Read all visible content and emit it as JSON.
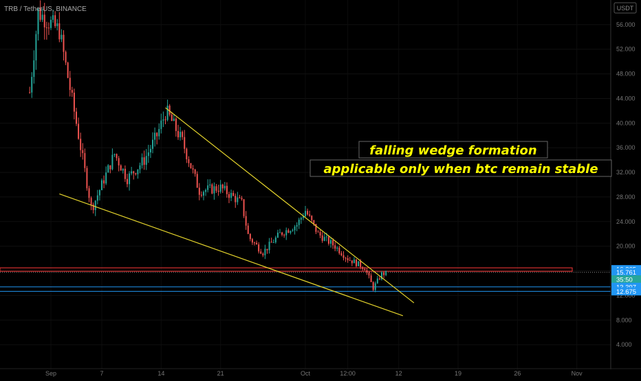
{
  "header": {
    "symbol_line": "TRB / TetherUS, BINANCE",
    "usdt_badge": "USDT"
  },
  "annotations": {
    "line1": "falling wedge formation",
    "line2": "applicable only when btc remain stable"
  },
  "price_labels": [
    {
      "text": "16.265",
      "price": 16.265,
      "color": "#2196f3"
    },
    {
      "text": "15.761",
      "price": 15.761,
      "color": "#2196f3"
    },
    {
      "text": "35:50",
      "price": 14.6,
      "color": "#26a69a"
    },
    {
      "text": "13.397",
      "price": 13.397,
      "color": "#2196f3"
    },
    {
      "text": "12.675",
      "price": 12.675,
      "color": "#2196f3"
    }
  ],
  "colors": {
    "up": "#26a69a",
    "down": "#ef5350",
    "wedge": "#e6d52c",
    "resistance": "#d32f2f",
    "support": "#2196f3"
  },
  "chart_data": {
    "type": "candlestick",
    "title": "TRB / TetherUS, BINANCE",
    "y_ticks": [
      4,
      8,
      12,
      16,
      20,
      24,
      28,
      32,
      36,
      40,
      44,
      48,
      52,
      56
    ],
    "y_tick_labels": [
      "4.000",
      "8.000",
      "12.000",
      "16.000",
      "20.000",
      "24.000",
      "28.000",
      "32.000",
      "36.000",
      "40.000",
      "44.000",
      "48.000",
      "52.000",
      "56.000"
    ],
    "ylim": [
      0,
      60
    ],
    "x_tick_labels": [
      "Sep",
      "7",
      "14",
      "21",
      "Oct",
      "12:00",
      "12",
      "19",
      "26",
      "Nov"
    ],
    "x_range_days": [
      -6,
      66
    ],
    "x_ticks_days": [
      0,
      6,
      13,
      20,
      30,
      35,
      41,
      48,
      55,
      62
    ],
    "trend_lines": [
      {
        "name": "upper-wedge",
        "points": [
          [
            13.5,
            42.5
          ],
          [
            42.8,
            10.8
          ]
        ]
      },
      {
        "name": "lower-wedge",
        "points": [
          [
            1.0,
            28.5
          ],
          [
            41.5,
            8.7
          ]
        ]
      }
    ],
    "horizontal_levels": [
      {
        "name": "resistance",
        "value": 16.265,
        "style": "red-band"
      },
      {
        "name": "current",
        "value": 15.761,
        "style": "dotted"
      },
      {
        "name": "support-1",
        "value": 13.397,
        "style": "blue"
      },
      {
        "name": "support-2",
        "value": 12.675,
        "style": "blue"
      }
    ],
    "price_path": [
      [
        -2.5,
        45
      ],
      [
        -1.5,
        58
      ],
      [
        1.0,
        55
      ],
      [
        3.0,
        40
      ],
      [
        4.8,
        26
      ],
      [
        7.5,
        35
      ],
      [
        9.0,
        31
      ],
      [
        11.0,
        34
      ],
      [
        12.5,
        38
      ],
      [
        13.6,
        42
      ],
      [
        15.5,
        37
      ],
      [
        17.5,
        29
      ],
      [
        20.0,
        29.5
      ],
      [
        22.5,
        27
      ],
      [
        23.3,
        21.5
      ],
      [
        25.0,
        19
      ],
      [
        27.0,
        22
      ],
      [
        29.0,
        23.5
      ],
      [
        30.0,
        25.8
      ],
      [
        31.5,
        22
      ],
      [
        33.5,
        20
      ],
      [
        35.0,
        18
      ],
      [
        37.0,
        16.5
      ],
      [
        38.0,
        13.2
      ],
      [
        39.0,
        15.5
      ],
      [
        39.6,
        15.6
      ]
    ]
  }
}
